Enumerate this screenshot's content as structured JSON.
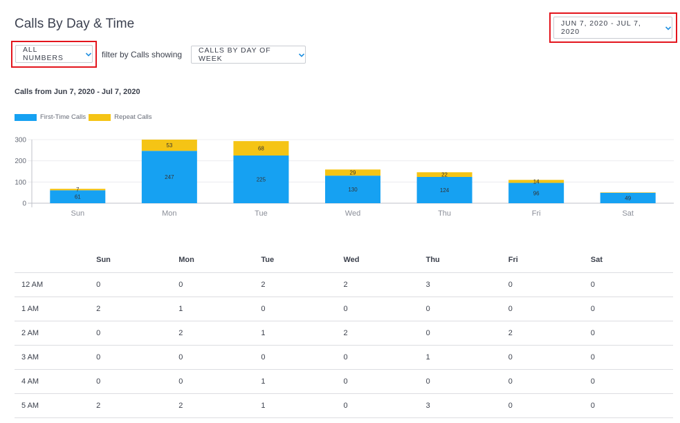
{
  "header": {
    "title": "Calls By Day & Time",
    "numbers_dropdown": "ALL NUMBERS",
    "filter_text": "filter by Calls showing",
    "showing_dropdown": "CALLS BY DAY OF WEEK",
    "date_range": "JUN 7, 2020 - JUL 7, 2020"
  },
  "chart_data": {
    "type": "bar",
    "stacked": true,
    "title": "Calls from Jun 7, 2020 - Jul 7, 2020",
    "categories": [
      "Sun",
      "Mon",
      "Tue",
      "Wed",
      "Thu",
      "Fri",
      "Sat"
    ],
    "series": [
      {
        "name": "First-Time Calls",
        "color": "#16a1f2",
        "values": [
          61,
          247,
          225,
          130,
          124,
          96,
          49
        ]
      },
      {
        "name": "Repeat Calls",
        "color": "#f5c415",
        "values": [
          7,
          53,
          68,
          29,
          22,
          14,
          2
        ]
      }
    ],
    "yticks": [
      0,
      100,
      200,
      300
    ],
    "ylim": [
      0,
      300
    ],
    "grid": true,
    "legend": "top-left"
  },
  "table": {
    "columns": [
      "",
      "Sun",
      "Mon",
      "Tue",
      "Wed",
      "Thu",
      "Fri",
      "Sat"
    ],
    "rows": [
      [
        "12 AM",
        "0",
        "0",
        "2",
        "2",
        "3",
        "0",
        "0"
      ],
      [
        "1 AM",
        "2",
        "1",
        "0",
        "0",
        "0",
        "0",
        "0"
      ],
      [
        "2 AM",
        "0",
        "2",
        "1",
        "2",
        "0",
        "2",
        "0"
      ],
      [
        "3 AM",
        "0",
        "0",
        "0",
        "0",
        "1",
        "0",
        "0"
      ],
      [
        "4 AM",
        "0",
        "0",
        "1",
        "0",
        "0",
        "0",
        "0"
      ],
      [
        "5 AM",
        "2",
        "2",
        "1",
        "0",
        "3",
        "0",
        "0"
      ]
    ]
  }
}
